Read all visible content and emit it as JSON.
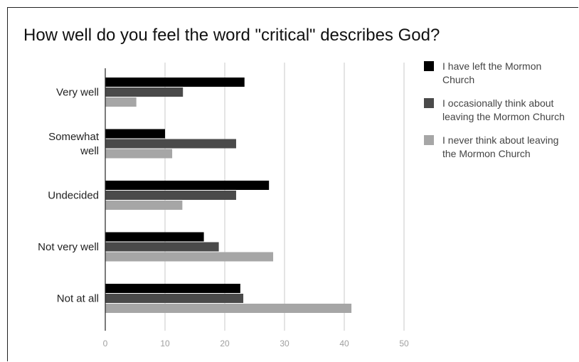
{
  "chart_data": {
    "type": "bar",
    "orientation": "horizontal",
    "title": "How well do you feel the word \"critical\" describes God?",
    "categories": [
      "Very well",
      "Somewhat well",
      "Undecided",
      "Not very well",
      "Not at all"
    ],
    "series": [
      {
        "name": "I have left the Mormon Church",
        "color": "#000000",
        "values": [
          23.3,
          10.0,
          27.4,
          16.5,
          22.6
        ]
      },
      {
        "name": "I occasionally think about leaving the Mormon Church",
        "color": "#4a4a4a",
        "values": [
          13.0,
          21.9,
          21.9,
          19.0,
          23.1
        ]
      },
      {
        "name": "I never think about leaving the Mormon Church",
        "color": "#a6a6a6",
        "values": [
          5.2,
          11.2,
          12.9,
          28.1,
          41.2
        ]
      }
    ],
    "xlim": [
      0,
      50
    ],
    "xticks": [
      "0",
      "10",
      "20",
      "30",
      "40",
      "50"
    ],
    "grid": true,
    "legend_position": "right"
  }
}
